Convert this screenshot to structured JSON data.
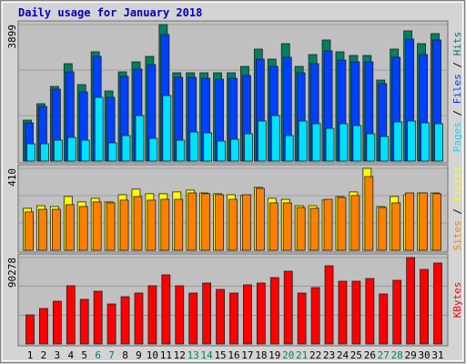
{
  "title": "Daily usage for January 2018",
  "chart_data": [
    {
      "type": "bar",
      "ylim": [
        0,
        3899
      ],
      "yticks": [
        3899
      ],
      "legend_separator": " / ",
      "series": [
        {
          "name": "Hits",
          "color": "#008060",
          "values": [
            1170,
            1638,
            2132,
            2782,
            2184,
            3120,
            2002,
            2548,
            2834,
            2990,
            3899,
            2522,
            2522,
            2522,
            2522,
            2522,
            2704,
            3198,
            2912,
            3354,
            2704,
            3042,
            3458,
            3120,
            3016,
            3016,
            2314,
            3198,
            3718,
            3354,
            3640
          ]
        },
        {
          "name": "Files",
          "color": "#0040ff",
          "values": [
            1092,
            1560,
            2054,
            2548,
            1976,
            2990,
            1820,
            2418,
            2626,
            2756,
            3614,
            2392,
            2392,
            2366,
            2340,
            2366,
            2444,
            2912,
            2704,
            2964,
            2522,
            2782,
            3146,
            2886,
            2834,
            2834,
            2210,
            2964,
            3484,
            3042,
            3458
          ]
        },
        {
          "name": "Pages",
          "color": "#00e0ff",
          "values": [
            494,
            494,
            598,
            676,
            598,
            1820,
            520,
            728,
            1300,
            650,
            1872,
            598,
            832,
            806,
            572,
            624,
            780,
            1144,
            1300,
            728,
            1144,
            1066,
            936,
            1066,
            1014,
            780,
            702,
            1118,
            1144,
            1092,
            1066
          ]
        }
      ]
    },
    {
      "type": "bar",
      "ylim": [
        0,
        410
      ],
      "yticks": [
        410
      ],
      "legend_separator": " / ",
      "series": [
        {
          "name": "Visits",
          "color": "#ffff00",
          "values": [
            210,
            223,
            219,
            269,
            242,
            260,
            242,
            278,
            306,
            283,
            283,
            292,
            301,
            287,
            283,
            278,
            274,
            315,
            260,
            255,
            223,
            223,
            251,
            269,
            292,
            410,
            219,
            269,
            278,
            287,
            287
          ]
        },
        {
          "name": "Sites",
          "color": "#ff8000",
          "values": [
            192,
            205,
            205,
            228,
            219,
            242,
            237,
            251,
            269,
            251,
            255,
            255,
            287,
            283,
            278,
            255,
            278,
            310,
            237,
            237,
            214,
            210,
            255,
            264,
            274,
            369,
            214,
            237,
            287,
            287,
            283
          ]
        }
      ]
    },
    {
      "type": "bar",
      "ylim": [
        0,
        90278
      ],
      "yticks": [
        90278
      ],
      "categories": [
        "1",
        "2",
        "3",
        "4",
        "5",
        "6",
        "7",
        "8",
        "9",
        "10",
        "11",
        "12",
        "13",
        "14",
        "15",
        "16",
        "17",
        "18",
        "19",
        "20",
        "21",
        "22",
        "23",
        "24",
        "25",
        "26",
        "27",
        "28",
        "29",
        "30",
        "31"
      ],
      "category_colors": [
        "#000000",
        "#000000",
        "#000000",
        "#000000",
        "#000000",
        "#008060",
        "#008060",
        "#000000",
        "#000000",
        "#000000",
        "#000000",
        "#000000",
        "#008060",
        "#008060",
        "#000000",
        "#000000",
        "#000000",
        "#000000",
        "#000000",
        "#008060",
        "#008060",
        "#000000",
        "#000000",
        "#000000",
        "#000000",
        "#000000",
        "#008060",
        "#008060",
        "#000000",
        "#000000",
        "#000000"
      ],
      "series": [
        {
          "name": "KBytes",
          "color": "#ff0000",
          "values": [
            30400,
            37050,
            44650,
            60800,
            46550,
            55100,
            41800,
            49400,
            53200,
            60800,
            72200,
            60800,
            53200,
            63650,
            57000,
            53200,
            61750,
            63650,
            69350,
            76000,
            53200,
            58900,
            81700,
            65550,
            65550,
            68400,
            52250,
            66500,
            90278,
            77900,
            84550
          ]
        }
      ]
    }
  ]
}
